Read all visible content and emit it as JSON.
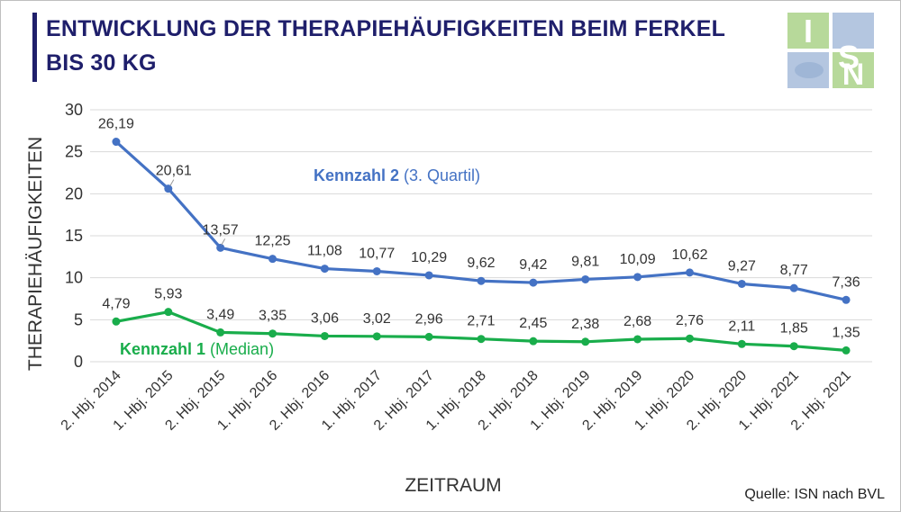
{
  "title": {
    "line1": "ENTWICKLUNG DER THERAPIEHÄUFIGKEITEN BEIM FERKEL",
    "line2": "BIS 30 KG"
  },
  "logo": {
    "text": "ISN"
  },
  "source": "Quelle: ISN nach BVL",
  "colors": {
    "title": "#1f1f6b",
    "series_blue": "#4472c4",
    "series_green": "#19ad4b",
    "grid": "#d9d9d9",
    "logo_green": "#b7d99a",
    "logo_blue": "#b4c6e0"
  },
  "chart_data": {
    "type": "line",
    "xlabel": "ZEITRAUM",
    "ylabel": "THERAPIEHÄUFIGKEITEN",
    "ylim": [
      0,
      30
    ],
    "yticks": [
      "0",
      "5",
      "10",
      "15",
      "20",
      "25",
      "30"
    ],
    "grid": true,
    "categories": [
      "2. Hbj. 2014",
      "1. Hbj. 2015",
      "2. Hbj. 2015",
      "1. Hbj. 2016",
      "2. Hbj. 2016",
      "1. Hbj. 2017",
      "2. Hbj. 2017",
      "1. Hbj. 2018",
      "2. Hbj. 2018",
      "1. Hbj. 2019",
      "2. Hbj. 2019",
      "1. Hbj. 2020",
      "2. Hbj. 2020",
      "1. Hbj. 2021",
      "2. Hbj. 2021"
    ],
    "series": [
      {
        "name": "Kennzahl 2",
        "name_suffix": " (3. Quartil)",
        "color": "#4472c4",
        "values": [
          26.19,
          20.61,
          13.57,
          12.25,
          11.08,
          10.77,
          10.29,
          9.62,
          9.42,
          9.81,
          10.09,
          10.62,
          9.27,
          8.77,
          7.36
        ],
        "labels": [
          "26,19",
          "20,61",
          "13,57",
          "12,25",
          "11,08",
          "10,77",
          "10,29",
          "9,62",
          "9,42",
          "9,81",
          "10,09",
          "10,62",
          "9,27",
          "8,77",
          "7,36"
        ]
      },
      {
        "name": "Kennzahl 1",
        "name_suffix": " (Median)",
        "color": "#19ad4b",
        "values": [
          4.79,
          5.93,
          3.49,
          3.35,
          3.06,
          3.02,
          2.96,
          2.71,
          2.45,
          2.38,
          2.68,
          2.76,
          2.11,
          1.85,
          1.35
        ],
        "labels": [
          "4,79",
          "5,93",
          "3,49",
          "3,35",
          "3,06",
          "3,02",
          "2,96",
          "2,71",
          "2,45",
          "2,38",
          "2,68",
          "2,76",
          "2,11",
          "1,85",
          "1,35"
        ]
      }
    ]
  }
}
